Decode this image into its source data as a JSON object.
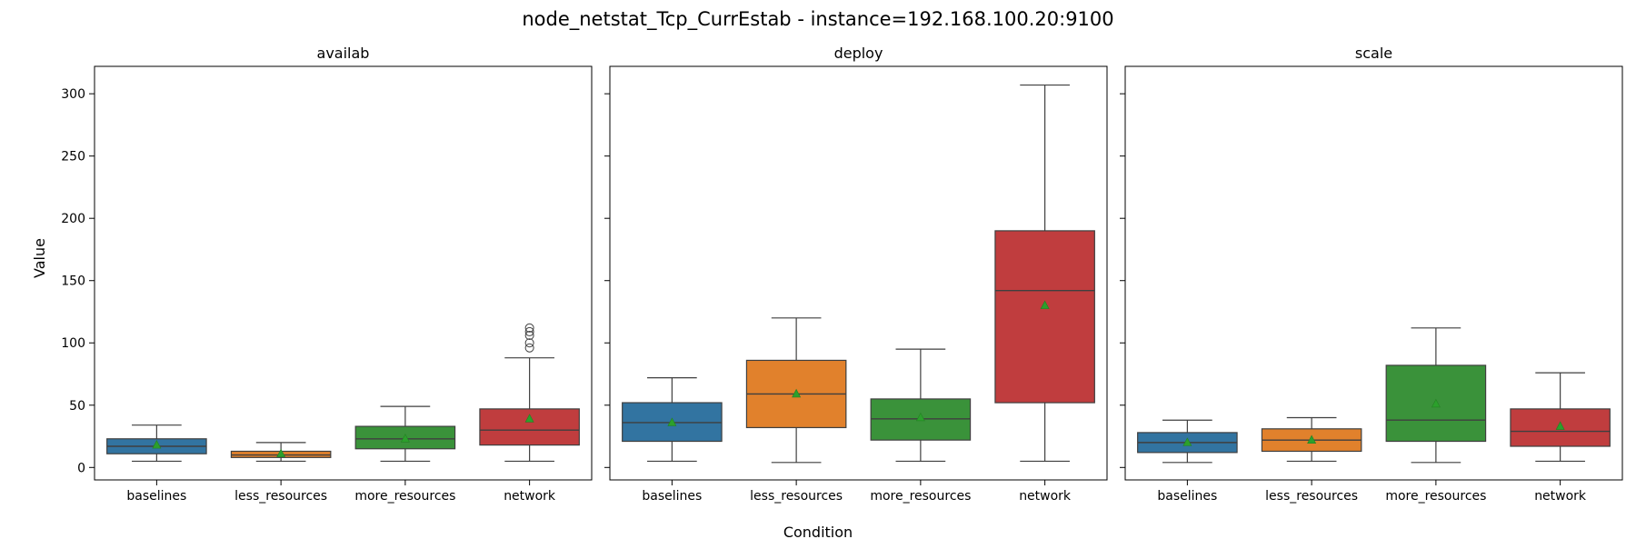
{
  "figure": {
    "title": "node_netstat_Tcp_CurrEstab - instance=192.168.100.20:9100",
    "xlabel": "Condition",
    "ylabel": "Value"
  },
  "chart_data": {
    "type": "box",
    "title": "node_netstat_Tcp_CurrEstab - instance=192.168.100.20:9100",
    "xlabel": "Condition",
    "ylabel": "Value",
    "ylim": [
      -10,
      322
    ],
    "yticks": [
      0,
      50,
      100,
      150,
      200,
      250,
      300
    ],
    "shared_y": true,
    "categories": [
      "baselines",
      "less_resources",
      "more_resources",
      "network"
    ],
    "colors": [
      "#3274a1",
      "#e1812c",
      "#3a923a",
      "#c03d3e"
    ],
    "mean_marker_color": "#2ca02c",
    "panels": [
      {
        "title": "availab",
        "boxes": [
          {
            "category": "baselines",
            "whisker_low": 5,
            "q1": 11,
            "median": 17,
            "q3": 23,
            "whisker_high": 34,
            "mean": 18,
            "outliers": []
          },
          {
            "category": "less_resources",
            "whisker_low": 5,
            "q1": 8,
            "median": 10,
            "q3": 13,
            "whisker_high": 20,
            "mean": 11,
            "outliers": []
          },
          {
            "category": "more_resources",
            "whisker_low": 5,
            "q1": 15,
            "median": 23,
            "q3": 33,
            "whisker_high": 49,
            "mean": 23,
            "outliers": []
          },
          {
            "category": "network",
            "whisker_low": 5,
            "q1": 18,
            "median": 30,
            "q3": 47,
            "whisker_high": 88,
            "mean": 39,
            "outliers": [
              96,
              100,
              106,
              109,
              112
            ]
          }
        ]
      },
      {
        "title": "deploy",
        "boxes": [
          {
            "category": "baselines",
            "whisker_low": 5,
            "q1": 21,
            "median": 36,
            "q3": 52,
            "whisker_high": 72,
            "mean": 36,
            "outliers": []
          },
          {
            "category": "less_resources",
            "whisker_low": 4,
            "q1": 32,
            "median": 59,
            "q3": 86,
            "whisker_high": 120,
            "mean": 59,
            "outliers": []
          },
          {
            "category": "more_resources",
            "whisker_low": 5,
            "q1": 22,
            "median": 39,
            "q3": 55,
            "whisker_high": 95,
            "mean": 40,
            "outliers": []
          },
          {
            "category": "network",
            "whisker_low": 5,
            "q1": 52,
            "median": 142,
            "q3": 190,
            "whisker_high": 307,
            "mean": 130,
            "outliers": []
          }
        ]
      },
      {
        "title": "scale",
        "boxes": [
          {
            "category": "baselines",
            "whisker_low": 4,
            "q1": 12,
            "median": 20,
            "q3": 28,
            "whisker_high": 38,
            "mean": 20,
            "outliers": []
          },
          {
            "category": "less_resources",
            "whisker_low": 5,
            "q1": 13,
            "median": 22,
            "q3": 31,
            "whisker_high": 40,
            "mean": 22,
            "outliers": []
          },
          {
            "category": "more_resources",
            "whisker_low": 4,
            "q1": 21,
            "median": 38,
            "q3": 82,
            "whisker_high": 112,
            "mean": 51,
            "outliers": []
          },
          {
            "category": "network",
            "whisker_low": 5,
            "q1": 17,
            "median": 29,
            "q3": 47,
            "whisker_high": 76,
            "mean": 33,
            "outliers": []
          }
        ]
      }
    ]
  }
}
